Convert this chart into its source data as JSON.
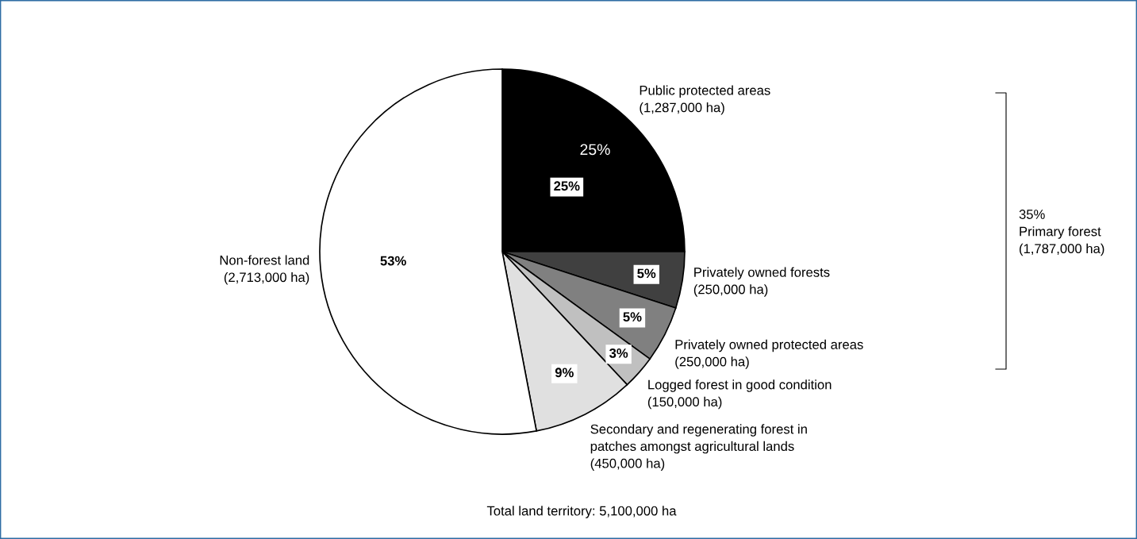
{
  "chart_data": {
    "type": "pie",
    "categories": [
      "Public protected areas\n(1,287,000 ha)",
      "Privately owned forests\n(250,000 ha)",
      "Privately owned protected areas\n(250,000 ha)",
      "Logged forest in good condition\n(150,000 ha)",
      "Secondary and regenerating forest in\npatches amongst agricultural lands\n(450,000 ha)",
      "Non-forest land\n(2,713,000 ha)"
    ],
    "values": [
      25,
      5,
      5,
      3,
      9,
      53
    ],
    "colors": [
      "#000000",
      "#404040",
      "#808080",
      "#c0c0c0",
      "#e0e0e0",
      "#ffffff"
    ],
    "value_labels": [
      "25%",
      "5%",
      "5%",
      "3%",
      "9%",
      "53%"
    ],
    "annotations": [
      "25%",
      "35%\nPrimary forest\n(1,787,000 ha)",
      "Total land territory: 5,100,000 ha"
    ]
  }
}
